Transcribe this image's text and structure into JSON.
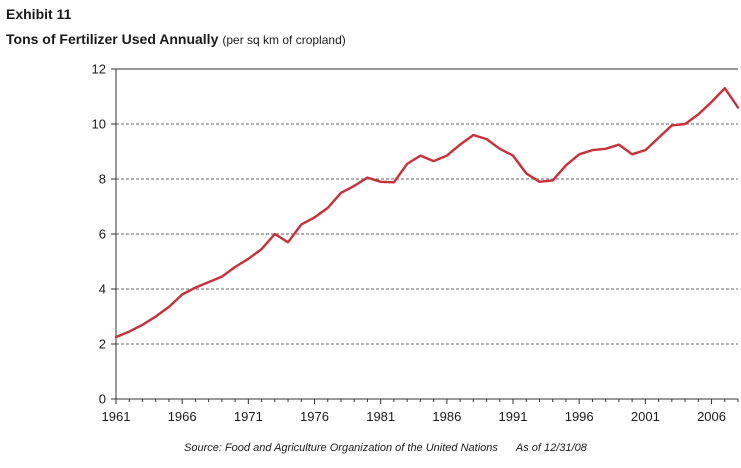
{
  "header": {
    "exhibit": "Exhibit 11",
    "title": "Tons of Fertilizer Used Annually",
    "subtitle": "(per sq km of cropland)"
  },
  "footer": {
    "source": "Source:  Food and Agriculture Organization of the United Nations",
    "as_of": "As of 12/31/08"
  },
  "colors": {
    "line": "#c8303a",
    "grid": "#333333",
    "axis": "#333333"
  },
  "chart_data": {
    "type": "line",
    "title": "Tons of Fertilizer Used Annually",
    "subtitle": "(per sq km of cropland)",
    "xlabel": "",
    "ylabel": "",
    "xlim": [
      1961,
      2008
    ],
    "ylim": [
      0,
      12
    ],
    "x_ticks": [
      1961,
      1966,
      1971,
      1976,
      1981,
      1986,
      1991,
      1996,
      2001,
      2006
    ],
    "y_ticks": [
      0,
      2,
      4,
      6,
      8,
      10,
      12
    ],
    "grid": "horizontal dashed",
    "series": [
      {
        "x": [
          1961,
          1962,
          1963,
          1964,
          1965,
          1966,
          1967,
          1968,
          1969,
          1970,
          1971,
          1972,
          1973,
          1974,
          1975,
          1976,
          1977,
          1978,
          1979,
          1980,
          1981,
          1982,
          1983,
          1984,
          1985,
          1986,
          1987,
          1988,
          1989,
          1990,
          1991,
          1992,
          1993,
          1994,
          1995,
          1996,
          1997,
          1998,
          1999,
          2000,
          2001,
          2002,
          2003,
          2004,
          2005,
          2006,
          2007,
          2008
        ],
        "values": [
          2.25,
          2.45,
          2.7,
          3.0,
          3.35,
          3.8,
          4.05,
          4.25,
          4.45,
          4.8,
          5.1,
          5.45,
          6.0,
          5.7,
          6.35,
          6.6,
          6.95,
          7.5,
          7.75,
          8.05,
          7.9,
          7.88,
          8.55,
          8.85,
          8.65,
          8.85,
          9.25,
          9.6,
          9.45,
          9.1,
          8.85,
          8.2,
          7.9,
          7.95,
          8.5,
          8.9,
          9.05,
          9.1,
          9.25,
          8.9,
          9.05,
          9.5,
          9.95,
          10.0,
          10.35,
          10.8,
          11.3,
          10.6
        ]
      }
    ]
  }
}
